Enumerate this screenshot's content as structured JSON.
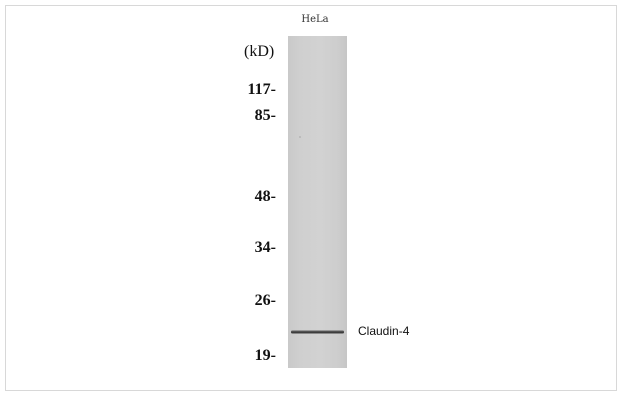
{
  "blot": {
    "lane_label": "HeLa",
    "unit_label": "(kD)",
    "markers": [
      "117-",
      "85-",
      "48-",
      "34-",
      "26-",
      "19-"
    ],
    "band_label": "Claudin-4"
  }
}
